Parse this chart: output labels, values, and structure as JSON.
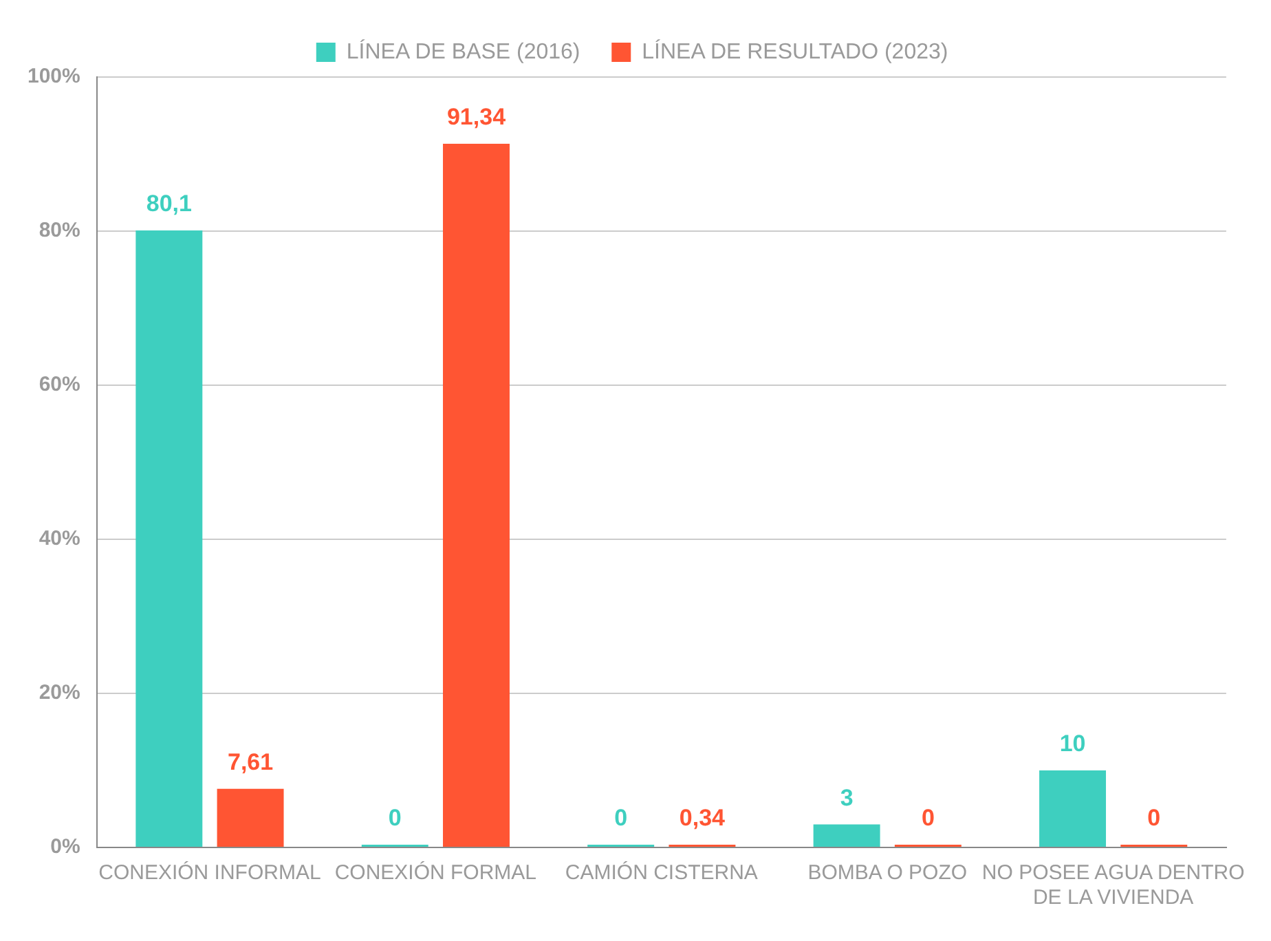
{
  "chart_data": {
    "type": "bar",
    "categories": [
      "CONEXIÓN INFORMAL",
      "CONEXIÓN FORMAL",
      "CAMIÓN CISTERNA",
      "BOMBA O POZO",
      "NO POSEE AGUA DENTRO DE LA VIVIENDA"
    ],
    "series": [
      {
        "name": "LÍNEA DE BASE (2016)",
        "color": "#3ecfbf",
        "values": [
          80.1,
          0,
          0,
          3,
          10
        ],
        "value_labels": [
          "80,1",
          "0",
          "0",
          "3",
          "10"
        ]
      },
      {
        "name": "LÍNEA DE RESULTADO (2023)",
        "color": "#ff5533",
        "values": [
          7.61,
          91.34,
          0.34,
          0,
          0
        ],
        "value_labels": [
          "7,61",
          "91,34",
          "0,34",
          "0",
          "0"
        ]
      }
    ],
    "ylim": [
      0,
      100
    ],
    "yticks": [
      {
        "value": 0,
        "label": "0%"
      },
      {
        "value": 20,
        "label": "20%"
      },
      {
        "value": 40,
        "label": "40%"
      },
      {
        "value": 60,
        "label": "60%"
      },
      {
        "value": 80,
        "label": "80%"
      },
      {
        "value": 100,
        "label": "100%"
      }
    ],
    "grid": "y",
    "legend": "top"
  }
}
